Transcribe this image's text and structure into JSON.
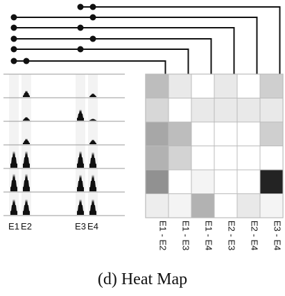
{
  "caption": "(d) Heat Map",
  "event_labels": [
    "E1",
    "E2",
    "E3",
    "E4"
  ],
  "pair_labels": [
    "E1 - E2",
    "E1 - E3",
    "E1 - E4",
    "E2 - E3",
    "E2 - E4",
    "E3 - E4"
  ],
  "heatmap": {
    "rows": 6,
    "cols": 6,
    "intensity": [
      [
        0.3,
        0.1,
        0.0,
        0.1,
        0.0,
        0.22
      ],
      [
        0.18,
        0.0,
        0.1,
        0.1,
        0.1,
        0.1
      ],
      [
        0.4,
        0.3,
        0.0,
        0.0,
        0.0,
        0.22
      ],
      [
        0.35,
        0.2,
        0.0,
        0.0,
        0.0,
        0.0
      ],
      [
        0.5,
        0.0,
        0.05,
        0.0,
        0.0,
        1.0
      ],
      [
        0.08,
        0.05,
        0.35,
        0.0,
        0.1,
        0.05
      ]
    ]
  },
  "sparklines": {
    "rows": 6,
    "bursts": [
      [
        0.0,
        0.35,
        0.0,
        0.2
      ],
      [
        0.0,
        0.2,
        0.6,
        0.1
      ],
      [
        0.0,
        0.3,
        0.0,
        0.25
      ],
      [
        0.9,
        0.9,
        0.9,
        0.85
      ],
      [
        0.95,
        0.95,
        0.9,
        0.9
      ],
      [
        0.85,
        0.85,
        0.85,
        0.85
      ]
    ]
  },
  "colors": {
    "line": "#111111",
    "grid": "#999999",
    "cell_border": "#bbbbbb"
  }
}
